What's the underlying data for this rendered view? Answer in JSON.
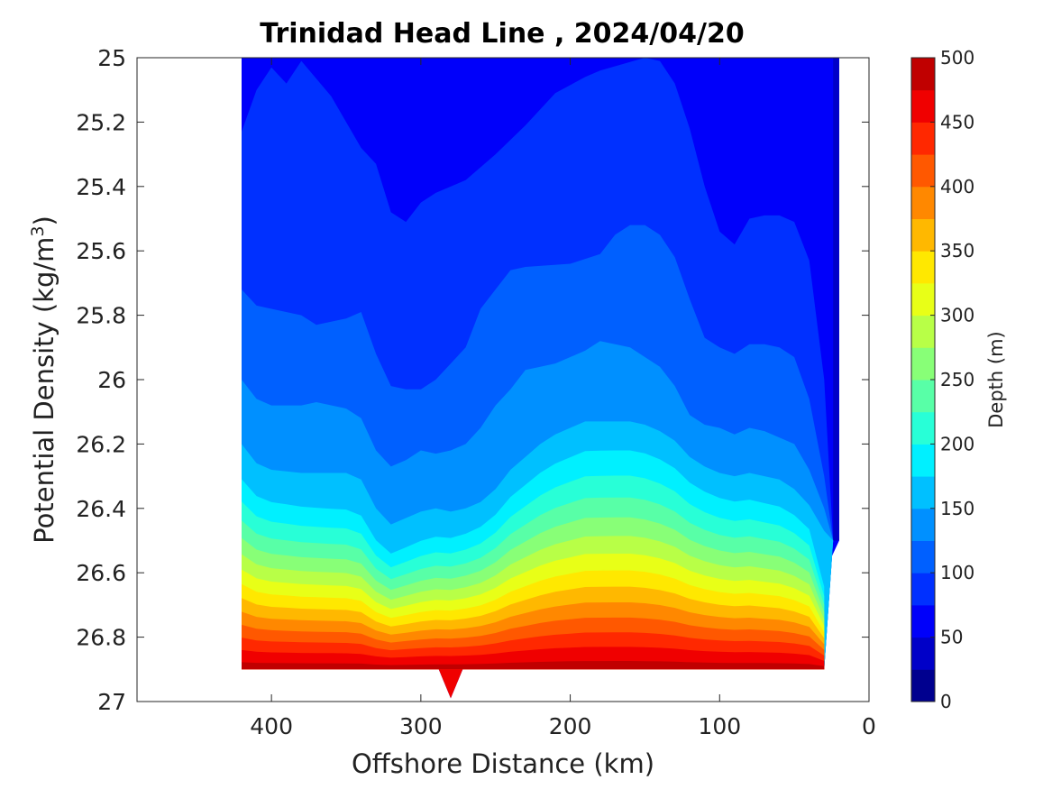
{
  "chart_data": {
    "type": "contour",
    "title": "Trinidad Head Line , 2024/04/20",
    "xlabel": "Offshore Distance (km)",
    "ylabel": {
      "prefix": "Potential Density (kg/m",
      "sup": "3",
      "suffix": ")"
    },
    "xlim": [
      490,
      0
    ],
    "ylim": [
      25,
      27
    ],
    "x_reversed": true,
    "y_reversed": true,
    "x_ticks": [
      400,
      300,
      200,
      100,
      0
    ],
    "y_ticks": [
      25,
      25.2,
      25.4,
      25.6,
      25.8,
      26,
      26.2,
      26.4,
      26.6,
      26.8,
      27
    ],
    "y_tick_labels": [
      "25",
      "25.2",
      "25.4",
      "25.6",
      "25.8",
      "26",
      "26.2",
      "26.4",
      "26.6",
      "26.8",
      "27"
    ],
    "colorbar": {
      "label": "Depth (m)",
      "min": 0,
      "max": 500,
      "ticks": [
        0,
        50,
        100,
        150,
        200,
        250,
        300,
        350,
        400,
        450,
        500
      ],
      "levels": [
        0,
        25,
        50,
        75,
        100,
        125,
        150,
        175,
        200,
        225,
        250,
        275,
        300,
        325,
        350,
        375,
        400,
        425,
        450,
        475,
        500
      ],
      "colors": [
        "#00008f",
        "#0000c8",
        "#0000fa",
        "#0030ff",
        "#0060ff",
        "#0090ff",
        "#00c0ff",
        "#00f0ff",
        "#28ffd7",
        "#58ffa7",
        "#88ff77",
        "#b8ff47",
        "#e8ff17",
        "#ffe800",
        "#ffb800",
        "#ff8800",
        "#ff5800",
        "#ff2800",
        "#f00000",
        "#c00000"
      ]
    },
    "domain": {
      "top": [
        [
          420,
          25
        ],
        [
          20,
          25
        ]
      ],
      "east_edge": [
        [
          20,
          25
        ],
        [
          20,
          26.5
        ],
        [
          30,
          26.6
        ],
        [
          30,
          26.9
        ]
      ],
      "bottom": [
        [
          30,
          26.9
        ],
        [
          420,
          26.9
        ]
      ],
      "notch": [
        [
          288,
          26.9
        ],
        [
          280,
          26.99
        ],
        [
          272,
          26.9
        ]
      ]
    },
    "contours": [
      {
        "level": 50,
        "points": [
          [
            24,
            25
          ],
          [
            24,
            26.5
          ]
        ]
      },
      {
        "level": 75,
        "points": [
          [
            420,
            25.23
          ],
          [
            410,
            25.1
          ],
          [
            400,
            25.03
          ],
          [
            390,
            25.08
          ],
          [
            380,
            25.01
          ],
          [
            360,
            25.12
          ],
          [
            350,
            25.2
          ],
          [
            340,
            25.28
          ],
          [
            330,
            25.33
          ],
          [
            320,
            25.48
          ],
          [
            310,
            25.51
          ],
          [
            300,
            25.45
          ],
          [
            290,
            25.42
          ],
          [
            270,
            25.38
          ],
          [
            250,
            25.3
          ],
          [
            230,
            25.21
          ],
          [
            210,
            25.11
          ],
          [
            190,
            25.06
          ],
          [
            180,
            25.04
          ],
          [
            150,
            25.0
          ],
          [
            140,
            25.01
          ],
          [
            130,
            25.08
          ],
          [
            120,
            25.22
          ],
          [
            110,
            25.4
          ],
          [
            100,
            25.54
          ],
          [
            90,
            25.58
          ],
          [
            80,
            25.5
          ],
          [
            70,
            25.49
          ],
          [
            60,
            25.49
          ],
          [
            50,
            25.51
          ],
          [
            40,
            25.63
          ],
          [
            30,
            26.0
          ],
          [
            24,
            26.5
          ]
        ]
      },
      {
        "level": 100,
        "points": [
          [
            420,
            25.72
          ],
          [
            410,
            25.77
          ],
          [
            400,
            25.78
          ],
          [
            380,
            25.8
          ],
          [
            370,
            25.83
          ],
          [
            350,
            25.81
          ],
          [
            340,
            25.79
          ],
          [
            330,
            25.92
          ],
          [
            320,
            26.02
          ],
          [
            310,
            26.03
          ],
          [
            300,
            26.03
          ],
          [
            290,
            26.0
          ],
          [
            270,
            25.9
          ],
          [
            260,
            25.78
          ],
          [
            250,
            25.72
          ],
          [
            240,
            25.66
          ],
          [
            230,
            25.65
          ],
          [
            200,
            25.64
          ],
          [
            180,
            25.61
          ],
          [
            170,
            25.55
          ],
          [
            160,
            25.52
          ],
          [
            150,
            25.52
          ],
          [
            140,
            25.55
          ],
          [
            130,
            25.62
          ],
          [
            120,
            25.75
          ],
          [
            110,
            25.87
          ],
          [
            100,
            25.9
          ],
          [
            90,
            25.92
          ],
          [
            80,
            25.89
          ],
          [
            70,
            25.89
          ],
          [
            60,
            25.9
          ],
          [
            50,
            25.93
          ],
          [
            40,
            26.06
          ],
          [
            30,
            26.3
          ],
          [
            24,
            26.5
          ]
        ]
      },
      {
        "level": 125,
        "points": [
          [
            420,
            26.0
          ],
          [
            410,
            26.06
          ],
          [
            400,
            26.08
          ],
          [
            380,
            26.08
          ],
          [
            370,
            26.07
          ],
          [
            350,
            26.09
          ],
          [
            340,
            26.12
          ],
          [
            330,
            26.22
          ],
          [
            320,
            26.27
          ],
          [
            310,
            26.25
          ],
          [
            300,
            26.22
          ],
          [
            290,
            26.23
          ],
          [
            280,
            26.22
          ],
          [
            270,
            26.2
          ],
          [
            260,
            26.15
          ],
          [
            250,
            26.08
          ],
          [
            240,
            26.03
          ],
          [
            230,
            25.97
          ],
          [
            220,
            25.96
          ],
          [
            210,
            25.95
          ],
          [
            200,
            25.93
          ],
          [
            190,
            25.91
          ],
          [
            180,
            25.88
          ],
          [
            160,
            25.9
          ],
          [
            150,
            25.93
          ],
          [
            140,
            25.96
          ],
          [
            130,
            26.02
          ],
          [
            120,
            26.11
          ],
          [
            110,
            26.14
          ],
          [
            100,
            26.15
          ],
          [
            90,
            26.17
          ],
          [
            80,
            26.15
          ],
          [
            70,
            26.16
          ],
          [
            60,
            26.18
          ],
          [
            50,
            26.2
          ],
          [
            40,
            26.28
          ],
          [
            30,
            26.4
          ],
          [
            24,
            26.5
          ]
        ]
      },
      {
        "level": 150,
        "points": [
          [
            420,
            26.2
          ],
          [
            410,
            26.26
          ],
          [
            400,
            26.28
          ],
          [
            380,
            26.29
          ],
          [
            370,
            26.29
          ],
          [
            350,
            26.29
          ],
          [
            340,
            26.31
          ],
          [
            330,
            26.4
          ],
          [
            320,
            26.45
          ],
          [
            310,
            26.43
          ],
          [
            300,
            26.41
          ],
          [
            290,
            26.4
          ],
          [
            280,
            26.41
          ],
          [
            270,
            26.4
          ],
          [
            260,
            26.38
          ],
          [
            250,
            26.34
          ],
          [
            240,
            26.28
          ],
          [
            230,
            26.24
          ],
          [
            220,
            26.2
          ],
          [
            210,
            26.17
          ],
          [
            200,
            26.15
          ],
          [
            190,
            26.13
          ],
          [
            180,
            26.13
          ],
          [
            170,
            26.13
          ],
          [
            160,
            26.13
          ],
          [
            150,
            26.14
          ],
          [
            140,
            26.16
          ],
          [
            130,
            26.19
          ],
          [
            120,
            26.24
          ],
          [
            110,
            26.27
          ],
          [
            100,
            26.29
          ],
          [
            90,
            26.3
          ],
          [
            80,
            26.29
          ],
          [
            70,
            26.3
          ],
          [
            60,
            26.31
          ],
          [
            50,
            26.34
          ],
          [
            40,
            26.39
          ],
          [
            30,
            26.47
          ],
          [
            24,
            26.5
          ]
        ]
      }
    ],
    "band_colors_first": "#0000fa"
  }
}
